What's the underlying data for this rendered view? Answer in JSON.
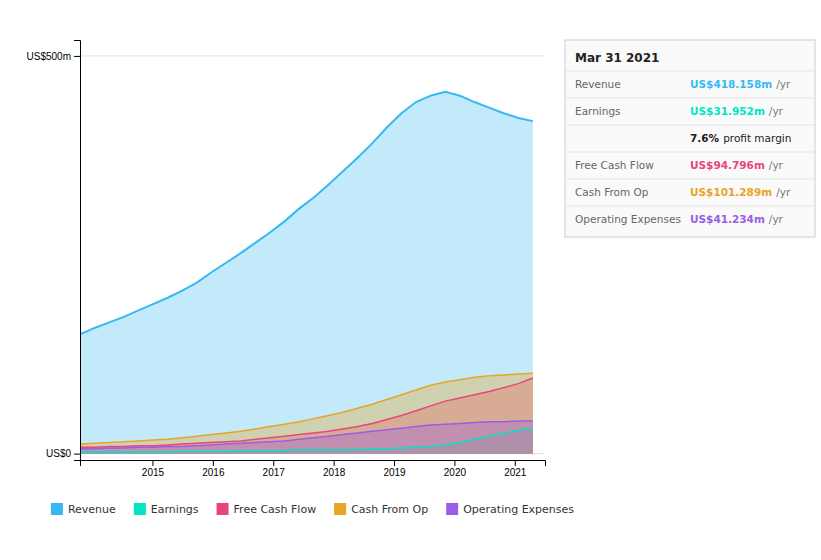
{
  "chart_data": {
    "type": "area",
    "x": [
      2013.8,
      2014.041935,
      2014.283871,
      2014.525806,
      2014.767742,
      2015.009677,
      2015.251613,
      2015.493548,
      2015.735484,
      2015.977419,
      2016.219355,
      2016.46129,
      2016.703226,
      2016.945161,
      2017.187097,
      2017.429032,
      2017.670968,
      2017.912903,
      2018.154839,
      2018.396774,
      2018.63871,
      2018.880645,
      2019.122581,
      2019.364516,
      2019.606452,
      2019.848387,
      2020.090323,
      2020.332258,
      2020.574194,
      2020.816129,
      2021.058065,
      2021.3
    ],
    "series": [
      {
        "name": "Revenue",
        "color": "#38b8f2",
        "values": [
          150,
          158,
          165,
          172,
          180,
          188,
          196,
          205,
          215,
          228,
          240,
          252,
          265,
          278,
          292,
          308,
          322,
          338,
          355,
          372,
          390,
          410,
          428,
          442,
          450,
          455,
          450,
          442,
          435,
          428,
          422,
          418
        ]
      },
      {
        "name": "Earnings",
        "color": "#00e5c3",
        "values": [
          2,
          2,
          2,
          2,
          2,
          2,
          2,
          3,
          3,
          3,
          3,
          4,
          4,
          4,
          4,
          5,
          5,
          5,
          5,
          5,
          6,
          6,
          7,
          8,
          9,
          11,
          14,
          18,
          22,
          26,
          29,
          32
        ]
      },
      {
        "name": "Free Cash Flow",
        "color": "#e8457a",
        "values": [
          8,
          8,
          9,
          9,
          10,
          10,
          11,
          12,
          13,
          14,
          15,
          16,
          18,
          20,
          22,
          24,
          26,
          28,
          31,
          34,
          38,
          43,
          48,
          54,
          60,
          66,
          70,
          74,
          78,
          83,
          88,
          95
        ]
      },
      {
        "name": "Cash From Op",
        "color": "#e8a427",
        "values": [
          12,
          13,
          14,
          15,
          16,
          17,
          18,
          20,
          22,
          24,
          26,
          28,
          31,
          34,
          37,
          40,
          44,
          48,
          52,
          57,
          62,
          68,
          74,
          80,
          86,
          90,
          93,
          96,
          98,
          99,
          100,
          101
        ]
      },
      {
        "name": "Operating Expenses",
        "color": "#9b5de5",
        "values": [
          6,
          6,
          7,
          7,
          8,
          8,
          9,
          9,
          10,
          11,
          12,
          13,
          14,
          15,
          16,
          18,
          20,
          22,
          24,
          26,
          28,
          30,
          32,
          34,
          36,
          37,
          38,
          39,
          40,
          40,
          41,
          41
        ]
      }
    ],
    "xlim": [
      2013.8,
      2021.5
    ],
    "xticks": [
      2015,
      2016,
      2017,
      2018,
      2019,
      2020,
      2021
    ],
    "ylim": [
      -8,
      520
    ],
    "yticks": [
      {
        "value": 0,
        "label": "US$0"
      },
      {
        "value": 500,
        "label": "US$500m"
      }
    ],
    "grid": true,
    "legend": "bottom",
    "annotations": [
      {
        "text": "Mar 31 2021"
      },
      {
        "label": "Revenue",
        "value": "US$418.158m",
        "suffix": "/yr",
        "color": "#38b8f2"
      },
      {
        "label": "Earnings",
        "value": "US$31.952m",
        "suffix": "/yr",
        "color": "#00e5c3"
      },
      {
        "value": "7.6%",
        "suffix": "profit margin"
      },
      {
        "label": "Free Cash Flow",
        "value": "US$94.796m",
        "suffix": "/yr",
        "color": "#e8457a"
      },
      {
        "label": "Cash From Op",
        "value": "US$101.289m",
        "suffix": "/yr",
        "color": "#e8a427"
      },
      {
        "label": "Operating Expenses",
        "value": "US$41.234m",
        "suffix": "/yr",
        "color": "#9b5de5"
      }
    ]
  }
}
